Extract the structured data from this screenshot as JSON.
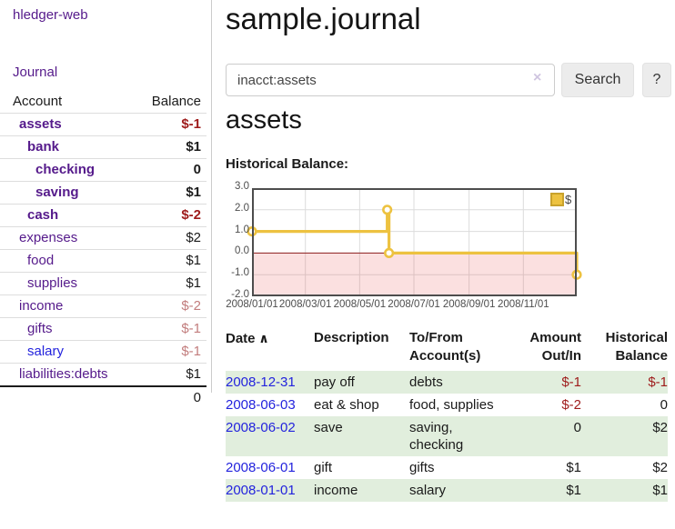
{
  "app": {
    "title": "hledger-web"
  },
  "sidebar": {
    "journal_link": "Journal",
    "account_table": {
      "headers": {
        "account": "Account",
        "balance": "Balance"
      },
      "accounts": [
        {
          "name": "assets",
          "balance": "$-1",
          "indent": 1,
          "bold": true,
          "balance_style": "neg-strong"
        },
        {
          "name": "bank",
          "balance": "$1",
          "indent": 2,
          "bold": true
        },
        {
          "name": "checking",
          "balance": "0",
          "indent": 3,
          "bold": true
        },
        {
          "name": "saving",
          "balance": "$1",
          "indent": 3,
          "bold": true
        },
        {
          "name": "cash",
          "balance": "$-2",
          "indent": 2,
          "bold": true,
          "balance_style": "neg-strong"
        },
        {
          "name": "expenses",
          "balance": "$2",
          "indent": 1
        },
        {
          "name": "food",
          "balance": "$1",
          "indent": 2
        },
        {
          "name": "supplies",
          "balance": "$1",
          "indent": 2
        },
        {
          "name": "income",
          "balance": "$-2",
          "indent": 1,
          "balance_style": "neg-muted"
        },
        {
          "name": "gifts",
          "balance": "$-1",
          "indent": 2,
          "balance_style": "neg-muted"
        },
        {
          "name": "salary",
          "balance": "$-1",
          "indent": 2,
          "balance_style": "neg-muted",
          "link_style": "blue"
        },
        {
          "name": "liabilities:debts",
          "balance": "$1",
          "indent": 1
        }
      ],
      "total": "0"
    }
  },
  "main": {
    "title": "sample.journal",
    "search": {
      "value": "inacct:assets",
      "clear_icon": "×",
      "search_button": "Search",
      "help_button": "?"
    },
    "account_heading": "assets",
    "chart_title": "Historical Balance:"
  },
  "chart_data": {
    "type": "line",
    "title": "Historical Balance",
    "x_range": [
      "2008-01-01",
      "2008-12-31"
    ],
    "ylim": [
      -2,
      3
    ],
    "y_ticks": [
      3.0,
      2.0,
      1.0,
      0.0,
      -1.0,
      -2.0
    ],
    "x_ticks": [
      "2008/01/01",
      "2008/03/01",
      "2008/05/01",
      "2008/07/01",
      "2008/09/01",
      "2008/11/01"
    ],
    "series": [
      {
        "name": "$",
        "color": "#edc240",
        "steps": true,
        "points": [
          [
            "2008-01-01",
            1
          ],
          [
            "2008-06-01",
            2
          ],
          [
            "2008-06-03",
            0
          ],
          [
            "2008-12-31",
            -1
          ]
        ]
      }
    ],
    "legend_position": "top-right",
    "grid": true,
    "negative_region_fill": "rgba(230,60,60,0.16)",
    "zero_line_color": "#8b1d1d"
  },
  "register": {
    "headers": [
      {
        "label": "Date",
        "sort_icon": "∧",
        "sortable": true
      },
      {
        "label": "Description"
      },
      {
        "label": "To/From Account(s)"
      },
      {
        "label": "Amount Out/In",
        "align": "right"
      },
      {
        "label": "Historical Balance",
        "align": "right"
      }
    ],
    "rows": [
      {
        "date": "2008-12-31",
        "description": "pay off",
        "accounts": "debts",
        "amount": "$-1",
        "balance": "$-1"
      },
      {
        "date": "2008-06-03",
        "description": "eat & shop",
        "accounts": "food, supplies",
        "amount": "$-2",
        "balance": "0"
      },
      {
        "date": "2008-06-02",
        "description": "save",
        "accounts": "saving, checking",
        "amount": "0",
        "balance": "$2"
      },
      {
        "date": "2008-06-01",
        "description": "gift",
        "accounts": "gifts",
        "amount": "$1",
        "balance": "$2"
      },
      {
        "date": "2008-01-01",
        "description": "income",
        "accounts": "salary",
        "amount": "$1",
        "balance": "$1"
      }
    ]
  },
  "colors": {
    "link_purple": "#551a8b",
    "link_blue": "#2323dd",
    "negative_strong": "#9e1b1b",
    "negative_muted": "#c27d7d",
    "row_stripe_green": "#e1eedd",
    "chart_line_gold": "#edc240"
  }
}
